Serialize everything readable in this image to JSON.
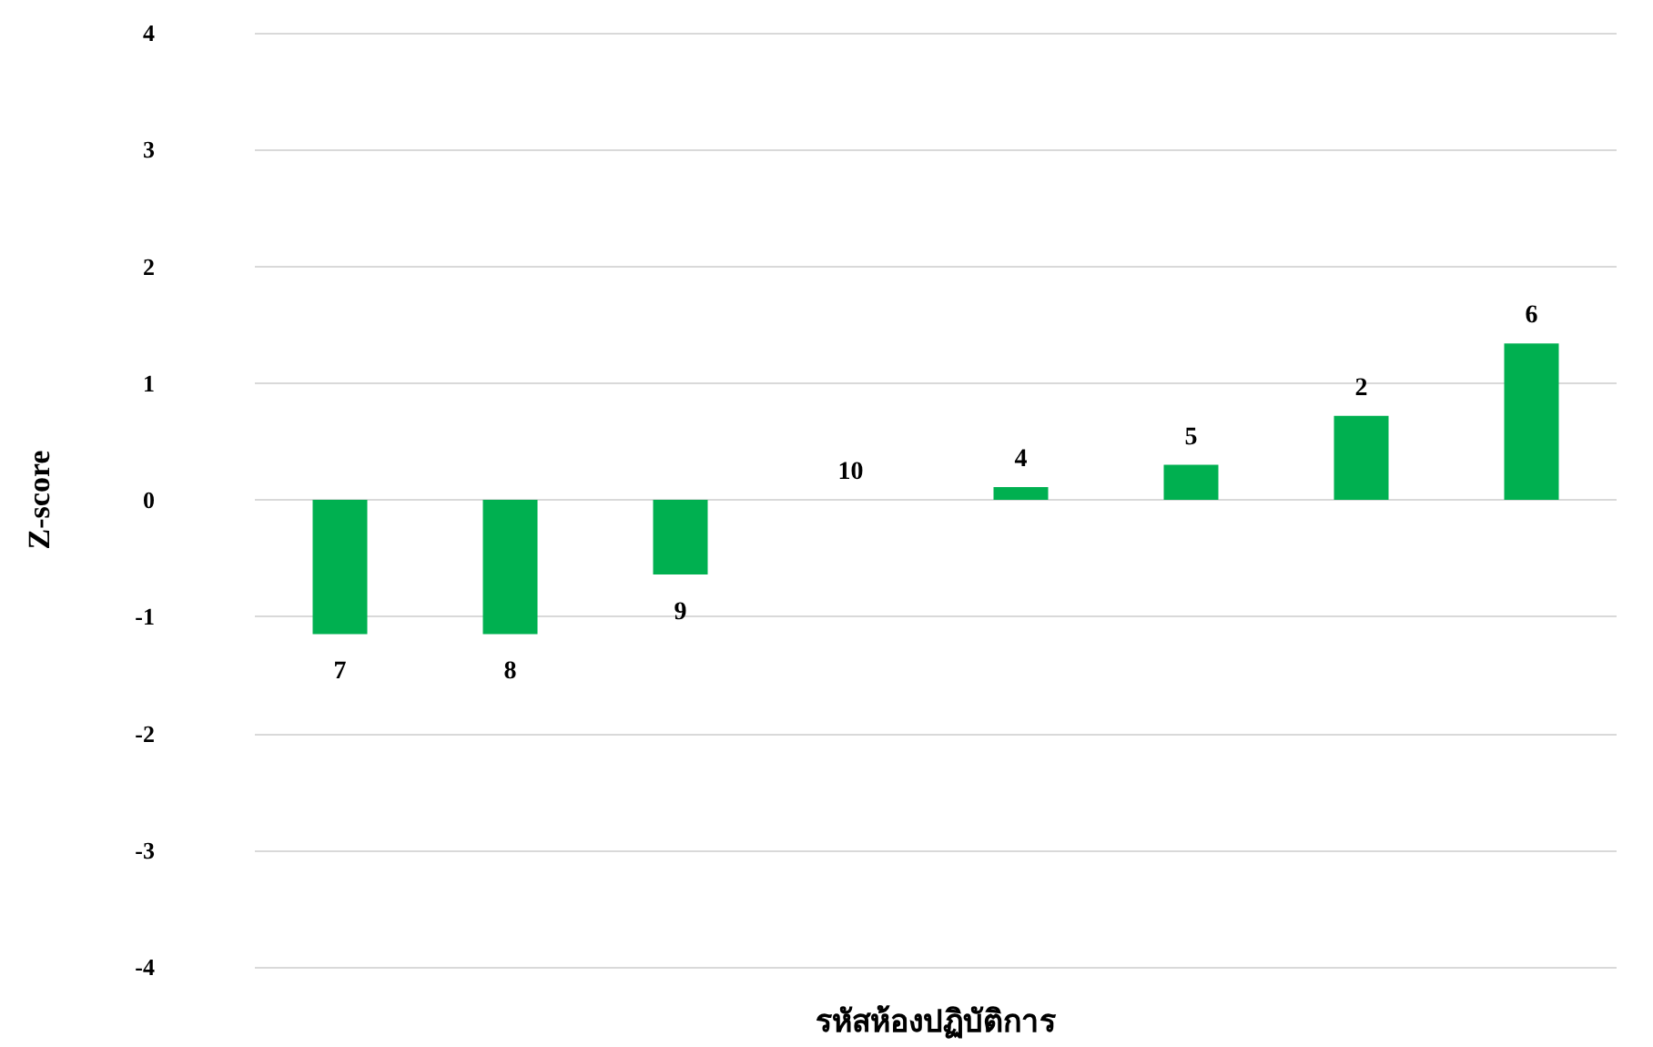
{
  "chart_data": {
    "type": "bar",
    "xlabel": "รหัสห้องปฏิบัติการ",
    "ylabel": "Z-score",
    "categories": [
      "7",
      "8",
      "9",
      "10",
      "4",
      "5",
      "2",
      "6"
    ],
    "values": [
      -1.15,
      -1.15,
      -0.64,
      0,
      0.11,
      0.3,
      0.72,
      1.34
    ],
    "color": "#00b050",
    "ylim": [
      -4,
      4
    ],
    "yticks": [
      -4,
      -3,
      -2,
      -1,
      0,
      1,
      2,
      3,
      4
    ],
    "grid": "y",
    "tick_labels": "y"
  }
}
